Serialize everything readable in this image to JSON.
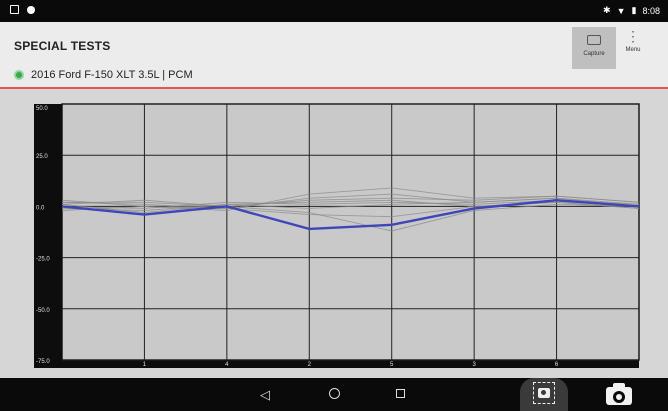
{
  "status_bar": {
    "left_icons": [
      "screenshot-icon",
      "notification-dot-icon"
    ],
    "right_text": "8:08",
    "right_icons": [
      "bluetooth-icon",
      "wifi-icon",
      "battery-icon"
    ]
  },
  "header": {
    "title": "SPECIAL TESTS",
    "vehicle": "2016 Ford F-150 XLT 3.5L | PCM",
    "status_color": "#3ba84a",
    "capture_label": "Capture",
    "menu_label": "Menu"
  },
  "nav_bar": {
    "icons": [
      "back-icon",
      "home-icon",
      "recent-apps-icon",
      "screen-capture-icon",
      "camera-icon"
    ]
  },
  "chart_data": {
    "type": "line",
    "ylim": [
      -75,
      50
    ],
    "y_ticks": [
      50,
      25,
      0,
      -25,
      -50,
      -75
    ],
    "y_tick_labels": [
      "50.0",
      "25.0",
      "0.0",
      "-25.0",
      "-50.0",
      "-75.0"
    ],
    "x_ticks": [
      1,
      2,
      3,
      4,
      5,
      6,
      7
    ],
    "x_tick_labels": [
      "1",
      "4",
      "2",
      "5",
      "3",
      "6",
      ""
    ],
    "grid": true,
    "series": [
      {
        "color": "#3e47b8",
        "highlight": true,
        "values": [
          0,
          -4,
          0,
          -11,
          -9,
          -1,
          3,
          0
        ]
      },
      {
        "color": "#8a8a8a",
        "values": [
          2,
          1,
          -1,
          4,
          6,
          2,
          4,
          1
        ]
      },
      {
        "color": "#8a8a8a",
        "values": [
          -1,
          -2,
          1,
          2,
          3,
          0,
          2,
          -1
        ]
      },
      {
        "color": "#8a8a8a",
        "values": [
          3,
          0,
          -2,
          6,
          9,
          4,
          5,
          2
        ]
      },
      {
        "color": "#8a8a8a",
        "values": [
          1,
          3,
          0,
          -3,
          -12,
          -2,
          1,
          0
        ]
      },
      {
        "color": "#8a8a8a",
        "values": [
          0,
          -1,
          2,
          1,
          2,
          1,
          3,
          1
        ]
      },
      {
        "color": "#8a8a8a",
        "values": [
          -2,
          0,
          -1,
          -4,
          -5,
          0,
          2,
          -1
        ]
      },
      {
        "color": "#8a8a8a",
        "values": [
          2,
          2,
          0,
          3,
          4,
          3,
          5,
          2
        ]
      },
      {
        "color": "#8a8a8a",
        "values": [
          1,
          -3,
          1,
          -1,
          1,
          2,
          4,
          0
        ]
      }
    ]
  }
}
